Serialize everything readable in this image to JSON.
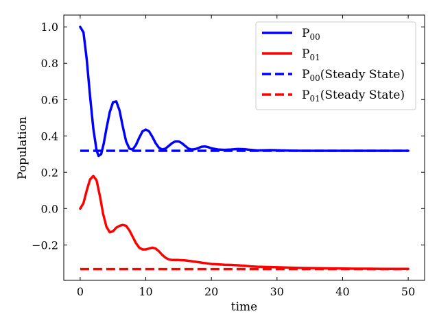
{
  "chart_data": {
    "type": "line",
    "title": "",
    "xlabel": "time",
    "ylabel": "Population",
    "xlim": [
      -2.5,
      52.5
    ],
    "ylim": [
      -0.395,
      1.065
    ],
    "xticks": [
      0,
      10,
      20,
      30,
      40,
      50
    ],
    "yticks": [
      -0.2,
      0.0,
      0.2,
      0.4,
      0.6,
      0.8,
      1.0
    ],
    "xtick_labels": [
      "0",
      "10",
      "20",
      "30",
      "40",
      "50"
    ],
    "ytick_labels": [
      "−0.2",
      "0.0",
      "0.2",
      "0.4",
      "0.6",
      "0.8",
      "1.0"
    ],
    "grid": false,
    "legend_position": "top-right",
    "series": [
      {
        "name": "P",
        "name_sub": "00",
        "color": "#0000ff",
        "style": "solid",
        "x": [
          0,
          0.5,
          1,
          1.5,
          2,
          2.5,
          2.8,
          3.2,
          3.6,
          4,
          4.5,
          5,
          5.5,
          6,
          6.5,
          7,
          7.5,
          8,
          8.5,
          9,
          9.5,
          10,
          10.5,
          11,
          11.5,
          12,
          12.5,
          13,
          13.5,
          14,
          14.5,
          15,
          15.5,
          16,
          16.5,
          17,
          17.5,
          18,
          18.5,
          19,
          19.5,
          20,
          21,
          22,
          23,
          24,
          25,
          26,
          27,
          28,
          29,
          30,
          32,
          34,
          36,
          38,
          40,
          42,
          44,
          46,
          48,
          50
        ],
        "y": [
          1.0,
          0.97,
          0.82,
          0.62,
          0.44,
          0.32,
          0.29,
          0.3,
          0.36,
          0.44,
          0.53,
          0.585,
          0.59,
          0.54,
          0.45,
          0.37,
          0.33,
          0.325,
          0.35,
          0.39,
          0.425,
          0.435,
          0.425,
          0.395,
          0.36,
          0.335,
          0.325,
          0.33,
          0.345,
          0.36,
          0.37,
          0.37,
          0.36,
          0.345,
          0.33,
          0.325,
          0.327,
          0.333,
          0.34,
          0.342,
          0.338,
          0.332,
          0.325,
          0.323,
          0.325,
          0.328,
          0.327,
          0.323,
          0.32,
          0.321,
          0.322,
          0.321,
          0.319,
          0.318,
          0.318,
          0.318,
          0.318,
          0.318,
          0.318,
          0.318,
          0.318,
          0.318
        ]
      },
      {
        "name": "P",
        "name_sub": "01",
        "color": "#ff0000",
        "style": "solid",
        "x": [
          0,
          0.5,
          1,
          1.5,
          2,
          2.5,
          3,
          3.5,
          4,
          4.5,
          5,
          5.5,
          6,
          6.5,
          7,
          7.5,
          8,
          8.5,
          9,
          9.5,
          10,
          10.5,
          11,
          11.5,
          12,
          12.5,
          13,
          13.5,
          14,
          15,
          16,
          17,
          18,
          19,
          20,
          21,
          22,
          23,
          24,
          25,
          26,
          27,
          28,
          29,
          30,
          32,
          34,
          36,
          38,
          40,
          42,
          44,
          46,
          48,
          50
        ],
        "y": [
          0.0,
          0.03,
          0.1,
          0.16,
          0.18,
          0.155,
          0.07,
          -0.03,
          -0.1,
          -0.13,
          -0.125,
          -0.105,
          -0.095,
          -0.09,
          -0.095,
          -0.12,
          -0.155,
          -0.19,
          -0.215,
          -0.225,
          -0.225,
          -0.22,
          -0.215,
          -0.22,
          -0.235,
          -0.255,
          -0.27,
          -0.28,
          -0.283,
          -0.283,
          -0.285,
          -0.29,
          -0.295,
          -0.3,
          -0.305,
          -0.307,
          -0.309,
          -0.31,
          -0.312,
          -0.315,
          -0.318,
          -0.32,
          -0.321,
          -0.322,
          -0.323,
          -0.325,
          -0.327,
          -0.328,
          -0.329,
          -0.33,
          -0.331,
          -0.331,
          -0.332,
          -0.332,
          -0.332
        ]
      },
      {
        "name": "P",
        "name_sub": "00",
        "name_suffix": "(Steady State)",
        "color": "#0000ff",
        "style": "dashed",
        "x": [
          0,
          50
        ],
        "y": [
          0.318,
          0.318
        ]
      },
      {
        "name": "P",
        "name_sub": "01",
        "name_suffix": "(Steady State)",
        "color": "#ff0000",
        "style": "dashed",
        "x": [
          0,
          50
        ],
        "y": [
          -0.333,
          -0.333
        ]
      }
    ]
  }
}
